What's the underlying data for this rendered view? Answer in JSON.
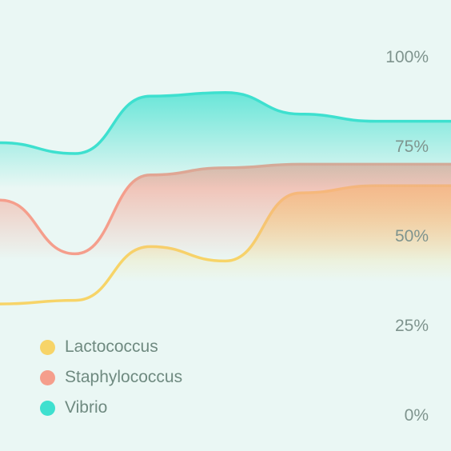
{
  "chart_data": {
    "type": "area",
    "x": [
      0,
      1,
      2,
      3,
      4,
      5,
      6
    ],
    "series": [
      {
        "name": "Lactococcus",
        "color": "#f7d468",
        "values": [
          31,
          32,
          47,
          43,
          62,
          64,
          64
        ]
      },
      {
        "name": "Staphylococcus",
        "color": "#f59e8c",
        "values": [
          60,
          45,
          67,
          69,
          70,
          70,
          70
        ]
      },
      {
        "name": "Vibrio",
        "color": "#3ee0cf",
        "values": [
          76,
          73,
          89,
          90,
          84,
          82,
          82
        ]
      }
    ],
    "y_ticks": [
      "100%",
      "75%",
      "50%",
      "25%",
      "0%"
    ],
    "ylim": [
      0,
      100
    ],
    "grid": false,
    "legend": "bottom-left",
    "y_axis_position": "right"
  }
}
